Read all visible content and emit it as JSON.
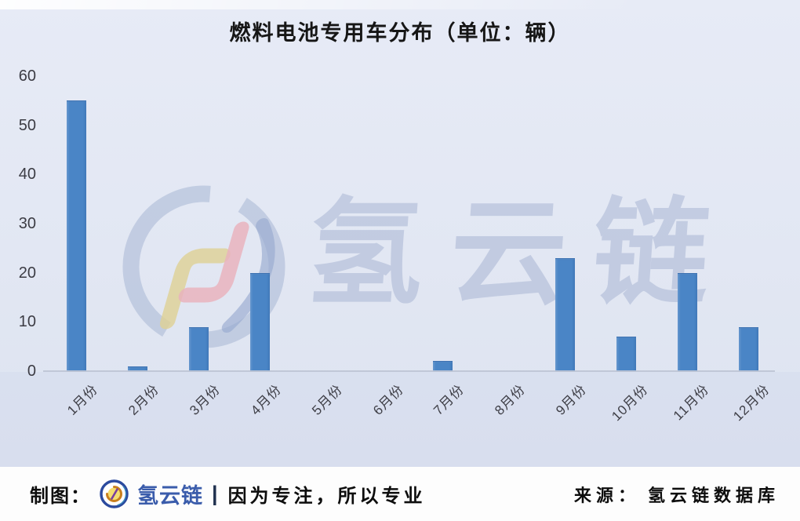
{
  "page": {
    "title": "燃料电池专用车分布（单位：辆）"
  },
  "chart_data": {
    "type": "bar",
    "title": "燃料电池专用车分布（单位：辆）",
    "unit": "辆",
    "categories": [
      "1月份",
      "2月份",
      "3月份",
      "4月份",
      "5月份",
      "6月份",
      "7月份",
      "8月份",
      "9月份",
      "10月份",
      "11月份",
      "12月份"
    ],
    "values": [
      55,
      1,
      9,
      20,
      0,
      0,
      2,
      0,
      23,
      7,
      20,
      9
    ],
    "xlabel": "",
    "ylabel": "",
    "ylim": [
      0,
      60
    ],
    "yticks": [
      0,
      10,
      20,
      30,
      40,
      50,
      60
    ],
    "grid": false,
    "legend": false,
    "bar_color": "#4a85c6"
  },
  "watermark": {
    "text": "氢云链"
  },
  "footer": {
    "made_by_label": "制图：",
    "brand": "氢云链",
    "separator": "|",
    "slogan": "因为专注，所以专业",
    "source_label": "来源：",
    "source_name": "氢云链数据库"
  },
  "colors": {
    "bar": "#4a85c6",
    "chart_background": "#e2e7f3",
    "footer_background": "#fdfdfd",
    "brand_blue": "#3a5cab",
    "watermark_blue": "#a8b6d4",
    "axis_line": "#c6cbd8",
    "text_dark": "#161616"
  }
}
